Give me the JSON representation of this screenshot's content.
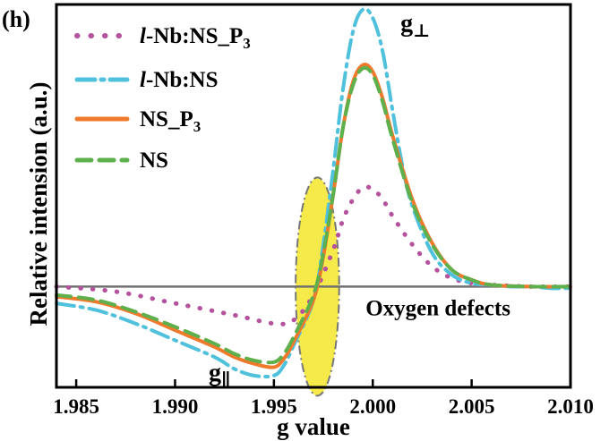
{
  "chart_data": {
    "type": "line",
    "panel_label": "(h)",
    "xlabel": "g value",
    "ylabel": "Relative intension (a.u.)",
    "xlim": [
      1.984,
      2.01
    ],
    "ylim": [
      -0.6,
      1.68
    ],
    "xticks": [
      1.985,
      1.99,
      1.995,
      2.0,
      2.005,
      2.01
    ],
    "xtick_labels": [
      "1.985",
      "1.990",
      "1.995",
      "2.000",
      "2.005",
      "2.010"
    ],
    "baseline": 0,
    "grid": false,
    "legend_position": "top-left",
    "series": [
      {
        "name_prefix": "l",
        "name_main": "-Nb:NS_P",
        "name_sub": "3",
        "color": "#b5529e",
        "style": "dotted",
        "x": [
          1.984,
          1.987,
          1.99,
          1.993,
          1.995,
          1.996,
          1.997,
          1.998,
          1.9985,
          1.999,
          1.9995,
          2.0,
          2.0005,
          2.001,
          2.002,
          2.003,
          2.004,
          2.005,
          2.006,
          2.008,
          2.01
        ],
        "y": [
          0.0,
          -0.03,
          -0.1,
          -0.17,
          -0.22,
          -0.2,
          -0.05,
          0.22,
          0.4,
          0.52,
          0.59,
          0.58,
          0.52,
          0.42,
          0.25,
          0.12,
          0.05,
          0.02,
          0.01,
          0.0,
          0.0
        ]
      },
      {
        "name_prefix": "l",
        "name_main": "-Nb:NS",
        "name_sub": "",
        "color": "#4fc1dc",
        "style": "dashdot",
        "x": [
          1.984,
          1.986,
          1.988,
          1.99,
          1.992,
          1.993,
          1.994,
          1.995,
          1.9955,
          1.996,
          1.997,
          1.9975,
          1.998,
          1.9985,
          1.999,
          1.9995,
          2.0,
          2.0005,
          2.001,
          2.0015,
          2.002,
          2.003,
          2.004,
          2.005,
          2.006,
          2.007,
          2.008,
          2.009,
          2.01
        ],
        "y": [
          -0.1,
          -0.14,
          -0.22,
          -0.32,
          -0.42,
          -0.49,
          -0.53,
          -0.53,
          -0.47,
          -0.35,
          -0.08,
          0.25,
          0.7,
          1.18,
          1.52,
          1.65,
          1.6,
          1.4,
          1.05,
          0.72,
          0.48,
          0.2,
          0.07,
          0.02,
          0.01,
          0.0,
          0.0,
          -0.01,
          -0.01
        ]
      },
      {
        "name_prefix": "",
        "name_main": "NS_P",
        "name_sub": "3",
        "color": "#f07a2c",
        "style": "solid",
        "x": [
          1.984,
          1.986,
          1.988,
          1.99,
          1.992,
          1.993,
          1.994,
          1.995,
          1.9955,
          1.996,
          1.997,
          1.9975,
          1.998,
          1.9985,
          1.999,
          1.9995,
          2.0,
          2.0005,
          2.001,
          2.002,
          2.003,
          2.004,
          2.005,
          2.006,
          2.008,
          2.01
        ],
        "y": [
          -0.06,
          -0.09,
          -0.16,
          -0.26,
          -0.36,
          -0.42,
          -0.46,
          -0.48,
          -0.43,
          -0.33,
          -0.08,
          0.18,
          0.55,
          0.95,
          1.22,
          1.32,
          1.28,
          1.12,
          0.9,
          0.52,
          0.26,
          0.1,
          0.04,
          0.01,
          0.0,
          0.0
        ]
      },
      {
        "name_prefix": "",
        "name_main": "NS",
        "name_sub": "",
        "color": "#5db04c",
        "style": "dashed",
        "x": [
          1.984,
          1.986,
          1.988,
          1.99,
          1.992,
          1.993,
          1.994,
          1.995,
          1.9955,
          1.996,
          1.997,
          1.9975,
          1.998,
          1.9985,
          1.999,
          1.9995,
          2.0,
          2.0005,
          2.001,
          2.002,
          2.003,
          2.004,
          2.005,
          2.006,
          2.008,
          2.01
        ],
        "y": [
          -0.05,
          -0.08,
          -0.15,
          -0.24,
          -0.34,
          -0.4,
          -0.44,
          -0.45,
          -0.4,
          -0.3,
          -0.05,
          0.2,
          0.55,
          0.95,
          1.2,
          1.3,
          1.26,
          1.1,
          0.88,
          0.5,
          0.25,
          0.1,
          0.04,
          0.01,
          0.0,
          0.0
        ]
      }
    ],
    "annotations": {
      "g_perp": {
        "base": "g",
        "sub": "⊥",
        "x": 2.0014,
        "y": 1.52
      },
      "g_par": {
        "base": "g",
        "sub": "∥",
        "x": 1.9917,
        "y": -0.56
      },
      "oxygen_defects": {
        "text": "Oxygen defects",
        "x": 2.0033,
        "y": -0.17
      },
      "defect_ellipse": {
        "cx": 1.9972,
        "cy": 0.0,
        "rx_g": 0.0011,
        "ry": 0.65,
        "fill": "#f5ea4a"
      }
    }
  }
}
